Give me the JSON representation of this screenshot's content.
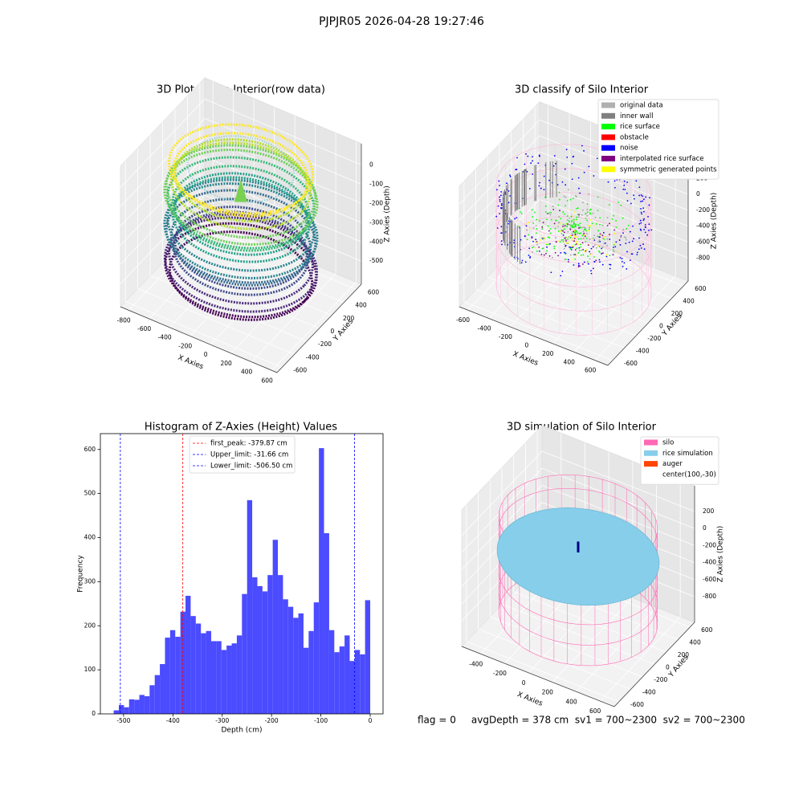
{
  "title": "PJPJR05 2026-04-28 19:27:46",
  "footer": "flag = 0     avgDepth = 378 cm  sv1 = 700~2300  sv2 = 700~2300",
  "chart_data": [
    {
      "type": "scatter3d",
      "title": "3D Plot of Silo Interior(row data)",
      "xlabel": "X Axies",
      "ylabel": "Y Axies",
      "zlabel": "Z Axies (Depth)",
      "xlim": [
        -880,
        650
      ],
      "xticks": [
        -800,
        -600,
        -400,
        -200,
        0,
        200,
        400,
        600
      ],
      "ylim": [
        -680,
        680
      ],
      "yticks": [
        -600,
        -400,
        -200,
        0,
        200,
        400,
        600
      ],
      "zlim": [
        -620,
        110
      ],
      "zticks": [
        -500,
        -400,
        -300,
        -200,
        -100,
        0
      ]
    },
    {
      "type": "scatter3d",
      "title": "3D classify of Silo Interior",
      "xlabel": "X Axies",
      "ylabel": "Y Axies",
      "zlabel": "Z Axies (Depth)",
      "xlim": [
        -680,
        720
      ],
      "xticks": [
        -600,
        -400,
        -200,
        0,
        200,
        400,
        600
      ],
      "ylim": [
        -680,
        680
      ],
      "yticks": [
        -600,
        -400,
        -200,
        0,
        200,
        400,
        600
      ],
      "zlim": [
        -1090,
        425
      ],
      "zticks": [
        -800,
        -600,
        -400,
        -200,
        0,
        200
      ],
      "legend": [
        {
          "name": "original data",
          "color": "#b0b0b0"
        },
        {
          "name": "inner wall",
          "color": "#808080"
        },
        {
          "name": "rice surface",
          "color": "#00ff00"
        },
        {
          "name": "obstacle",
          "color": "#ff0000"
        },
        {
          "name": "noise",
          "color": "#0000ff"
        },
        {
          "name": "interpolated rice surface",
          "color": "#800080"
        },
        {
          "name": "symmetric generated points",
          "color": "#ffff00"
        }
      ]
    },
    {
      "type": "histogram",
      "title": "Histogram of Z-Axies (Height) Values",
      "xlabel": "Depth (cm)",
      "ylabel": "Frequency",
      "color": "#4b4bff",
      "bins": [
        -520,
        -509.6,
        -499.2,
        -488.8,
        -478.4,
        -468,
        -457.6,
        -447.2,
        -436.8,
        -426.4,
        -416,
        -405.6,
        -395.2,
        -384.8,
        -374.4,
        -364,
        -353.6,
        -343.2,
        -332.8,
        -322.4,
        -312,
        -301.6,
        -291.2,
        -280.8,
        -270.4,
        -260,
        -249.6,
        -239.2,
        -228.8,
        -218.4,
        -208,
        -197.6,
        -187.2,
        -176.8,
        -166.4,
        -156,
        -145.6,
        -135.2,
        -124.8,
        -114.4,
        -104,
        -93.6,
        -83.2,
        -72.8,
        -62.4,
        -52,
        -41.6,
        -31.2,
        -20.8,
        -10.4,
        0
      ],
      "counts": [
        8,
        20,
        15,
        33,
        32,
        43,
        40,
        65,
        88,
        113,
        173,
        190,
        175,
        232,
        268,
        222,
        205,
        183,
        188,
        165,
        165,
        145,
        155,
        160,
        178,
        272,
        485,
        310,
        290,
        278,
        315,
        395,
        315,
        260,
        243,
        218,
        228,
        150,
        188,
        253,
        603,
        410,
        190,
        140,
        153,
        178,
        120,
        145,
        135,
        258
      ],
      "xlim": [
        -547,
        26
      ],
      "xticks": [
        -500,
        -400,
        -300,
        -200,
        -100,
        0
      ],
      "ylim": [
        0,
        636
      ],
      "yticks": [
        0,
        100,
        200,
        300,
        400,
        500,
        600
      ],
      "lines": [
        {
          "name": "first_peak",
          "value": -379.87,
          "label": "first_peak: -379.87 cm",
          "color": "#ff0000"
        },
        {
          "name": "Upper_limit",
          "value": -31.66,
          "label": "Upper_limit: -31.66 cm",
          "color": "#0000ff"
        },
        {
          "name": "Lower_limit",
          "value": -506.5,
          "label": "Lower_limit: -506.50 cm",
          "color": "#0000ff"
        }
      ]
    },
    {
      "type": "scatter3d",
      "title": "3D simulation of Silo Interior",
      "xlabel": "X Axies",
      "ylabel": "Y Axies",
      "zlabel": "Z Axies (Depth)",
      "xlim": [
        -560,
        720
      ],
      "xticks": [
        -400,
        -200,
        0,
        200,
        400,
        600
      ],
      "ylim": [
        -680,
        680
      ],
      "yticks": [
        -600,
        -400,
        -200,
        0,
        200,
        400,
        600
      ],
      "zlim": [
        -1100,
        500
      ],
      "zticks": [
        -800,
        -600,
        -400,
        -200,
        0,
        200
      ],
      "legend": [
        {
          "name": "silo",
          "color": "#ff69b4"
        },
        {
          "name": "rice simulation",
          "color": "#87ceeb"
        },
        {
          "name": "auger",
          "color": "#ff4500"
        },
        {
          "name": "center(100,-30)"
        }
      ]
    }
  ]
}
